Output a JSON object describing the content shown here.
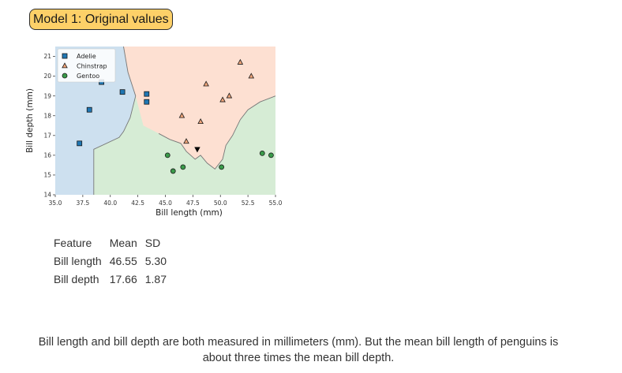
{
  "header": {
    "title": "Model 1: Original values"
  },
  "chart_data": {
    "type": "scatter",
    "xlabel": "Bill length (mm)",
    "ylabel": "Bill depth (mm)",
    "xlim": [
      35.0,
      55.0
    ],
    "ylim": [
      14,
      21.5
    ],
    "xticks": [
      35.0,
      37.5,
      40.0,
      42.5,
      45.0,
      47.5,
      50.0,
      52.5,
      55.0
    ],
    "xtick_labels": [
      "35.0",
      "37.5",
      "40.0",
      "42.5",
      "45.0",
      "47.5",
      "50.0",
      "52.5",
      "55.0"
    ],
    "yticks": [
      14,
      15,
      16,
      17,
      18,
      19,
      20,
      21
    ],
    "ytick_labels": [
      "14",
      "15",
      "16",
      "17",
      "18",
      "19",
      "20",
      "21"
    ],
    "grid": false,
    "legend_position": "top-left",
    "background": "decision regions of a classifier (Adelie / Chinstrap / Gentoo)",
    "colors": {
      "adelie_marker": "#1f77b4",
      "chinstrap_marker": "#f0a57a",
      "gentoo_marker": "#3a9b4a",
      "adelie_region": "#cde0ef",
      "chinstrap_region": "#fde0d2",
      "gentoo_region": "#d6ecd5",
      "boundary": "#777777",
      "query": "#000000"
    },
    "series": [
      {
        "name": "Adelie",
        "marker": "square",
        "points": [
          [
            37.2,
            16.6
          ],
          [
            38.1,
            18.3
          ],
          [
            39.2,
            19.7
          ],
          [
            41.1,
            19.2
          ],
          [
            43.3,
            19.1
          ],
          [
            43.3,
            18.7
          ]
        ]
      },
      {
        "name": "Chinstrap",
        "marker": "triangle-up",
        "points": [
          [
            46.5,
            18.0
          ],
          [
            46.9,
            16.7
          ],
          [
            48.2,
            17.7
          ],
          [
            48.7,
            19.6
          ],
          [
            50.2,
            18.8
          ],
          [
            50.8,
            19.0
          ],
          [
            51.8,
            20.7
          ],
          [
            52.8,
            20.0
          ]
        ]
      },
      {
        "name": "Gentoo",
        "marker": "circle",
        "points": [
          [
            45.2,
            16.0
          ],
          [
            45.7,
            15.2
          ],
          [
            46.6,
            15.4
          ],
          [
            50.1,
            15.4
          ],
          [
            53.8,
            16.1
          ],
          [
            54.6,
            16.0
          ]
        ]
      },
      {
        "name": "",
        "marker": "triangle-down",
        "points": [
          [
            47.9,
            16.3
          ]
        ]
      }
    ],
    "regions": {
      "adelie": [
        [
          35.0,
          21.5
        ],
        [
          41.2,
          21.5
        ],
        [
          41.6,
          20.2
        ],
        [
          42.3,
          19.0
        ],
        [
          41.8,
          17.9
        ],
        [
          41.2,
          17.2
        ],
        [
          40.8,
          16.9
        ],
        [
          38.5,
          16.3
        ],
        [
          38.5,
          14.0
        ],
        [
          35.0,
          14.0
        ]
      ],
      "chinstrap": [
        [
          41.2,
          21.5
        ],
        [
          55.0,
          21.5
        ],
        [
          55.0,
          19.0
        ],
        [
          53.6,
          18.7
        ],
        [
          52.5,
          18.3
        ],
        [
          51.8,
          17.8
        ],
        [
          51.1,
          17.0
        ],
        [
          50.5,
          16.5
        ],
        [
          50.2,
          15.8
        ],
        [
          49.5,
          15.3
        ],
        [
          48.8,
          15.6
        ],
        [
          48.2,
          16.0
        ],
        [
          47.7,
          15.8
        ],
        [
          46.9,
          16.2
        ],
        [
          46.4,
          16.6
        ],
        [
          45.4,
          16.8
        ],
        [
          44.4,
          17.1
        ],
        [
          43.0,
          17.5
        ],
        [
          42.3,
          19.0
        ],
        [
          41.6,
          20.2
        ]
      ]
    },
    "legend": [
      "Adelie",
      "Chinstrap",
      "Gentoo"
    ]
  },
  "stats_table": {
    "headers": [
      "Feature",
      "Mean",
      "SD"
    ],
    "rows": [
      [
        "Bill length",
        "46.55",
        "5.30"
      ],
      [
        "Bill depth",
        "17.66",
        "1.87"
      ]
    ]
  },
  "note": "Bill length and bill depth are both measured in millimeters (mm). But the mean bill length of penguins is about three times the mean bill depth."
}
